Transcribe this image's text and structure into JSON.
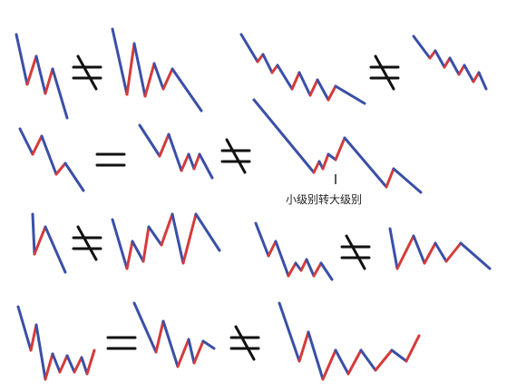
{
  "annotation": {
    "label": "小级别转大级别"
  },
  "colors": {
    "down_stroke": "#3a4fa8",
    "up_stroke": "#d63a3a",
    "symbol": "#111111",
    "background": "#ffffff"
  },
  "relations": [
    {
      "id": "r1a",
      "symbol": "not-equal"
    },
    {
      "id": "r1b",
      "symbol": "not-equal"
    },
    {
      "id": "r2a",
      "symbol": "equal"
    },
    {
      "id": "r2b",
      "symbol": "not-equal"
    },
    {
      "id": "r3a",
      "symbol": "not-equal"
    },
    {
      "id": "r3b",
      "symbol": "not-equal"
    },
    {
      "id": "r4a",
      "symbol": "equal"
    },
    {
      "id": "r4b",
      "symbol": "not-equal"
    }
  ]
}
